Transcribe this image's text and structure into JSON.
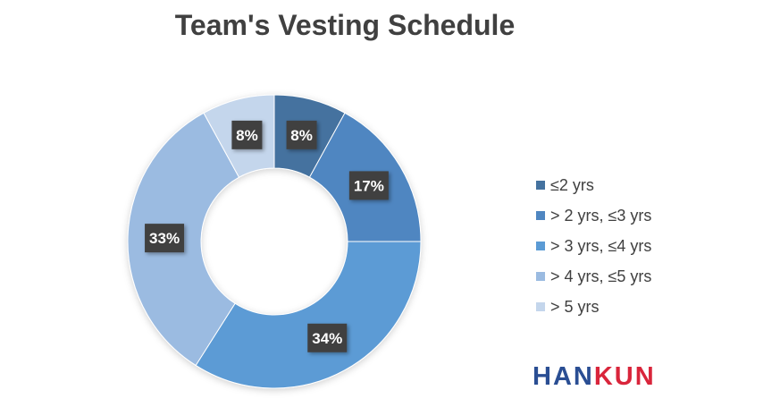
{
  "chart_data": {
    "type": "pie",
    "title": "Team's Vesting Schedule",
    "legend_position": "right",
    "categories": [
      "≤2 yrs",
      "> 2 yrs, ≤3 yrs",
      "> 3 yrs, ≤4 yrs",
      "> 4 yrs, ≤5 yrs",
      "> 5 yrs"
    ],
    "values": [
      8,
      17,
      34,
      33,
      8
    ],
    "data_labels": [
      "8%",
      "17%",
      "34%",
      "33%",
      "8%"
    ],
    "colors": [
      "#44729f",
      "#4f86c1",
      "#5b9bd5",
      "#9bbbe1",
      "#c4d6ec"
    ],
    "donut": true
  },
  "brand": {
    "part1": "HAN",
    "part2": "KUN",
    "color1": "#2a4e93",
    "color2": "#d9253b"
  },
  "label_style": {
    "box_color": "#404040",
    "text_color": "#ffffff"
  }
}
